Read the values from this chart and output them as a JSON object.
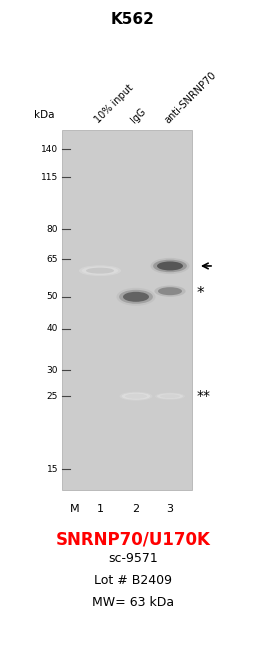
{
  "title": "K562",
  "title_fontsize": 11,
  "title_fontweight": "bold",
  "col_headers": [
    "10% input",
    "IgG",
    "anti-SNRNP70"
  ],
  "kda_markers": [
    140,
    115,
    80,
    65,
    50,
    40,
    30,
    25,
    15
  ],
  "kda_label": "kDa",
  "gel_bg_color": "#cccccc",
  "background_color": "#ffffff",
  "footer_gene": "SNRNP70/U170K",
  "footer_gene_color": "#ff0000",
  "footer_gene_fontsize": 12,
  "footer_gene_fontweight": "bold",
  "footer_line2": "sc-9571",
  "footer_line3": "Lot # B2409",
  "footer_line4": "MW= 63 kDa",
  "footer_fontsize": 9
}
